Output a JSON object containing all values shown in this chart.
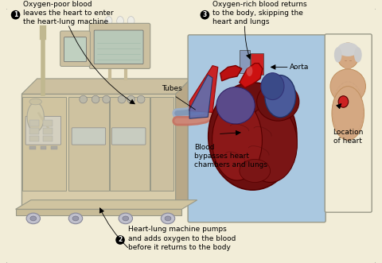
{
  "bg_color": "#f2edd8",
  "outer_border_color": "#888888",
  "machine_color": "#d8ccaa",
  "machine_edge": "#999988",
  "heart_panel_bg": "#aac8e0",
  "label1": "① Oxygen-poor blood\nleaves the heart to enter\nthe heart-lung machine",
  "label2": "② Heart-lung machine pumps\nand adds oxygen to the blood\nbefore it returns to the body",
  "label3": "③ Oxygen-rich blood returns\nto the body, skipping the\nheart and lungs",
  "lbl_tubes": "Tubes",
  "lbl_aorta": "Aorta",
  "lbl_bypass": "Blood\nbypasses heart\nchambers and lungs",
  "lbl_location": "Location\nof heart",
  "fs_main": 7.0,
  "fs_small": 6.5,
  "heart_dark": "#6b0f0f",
  "heart_mid": "#9b2020",
  "heart_light": "#c03030",
  "aorta_red": "#cc1111",
  "blue_vessel": "#3a4a8a",
  "purple_vessel": "#6a5a9a",
  "tube_blue_c": "#9ab0cc",
  "tube_red_c": "#c87060",
  "skin_color": "#d4a882",
  "skin_edge": "#c09060"
}
